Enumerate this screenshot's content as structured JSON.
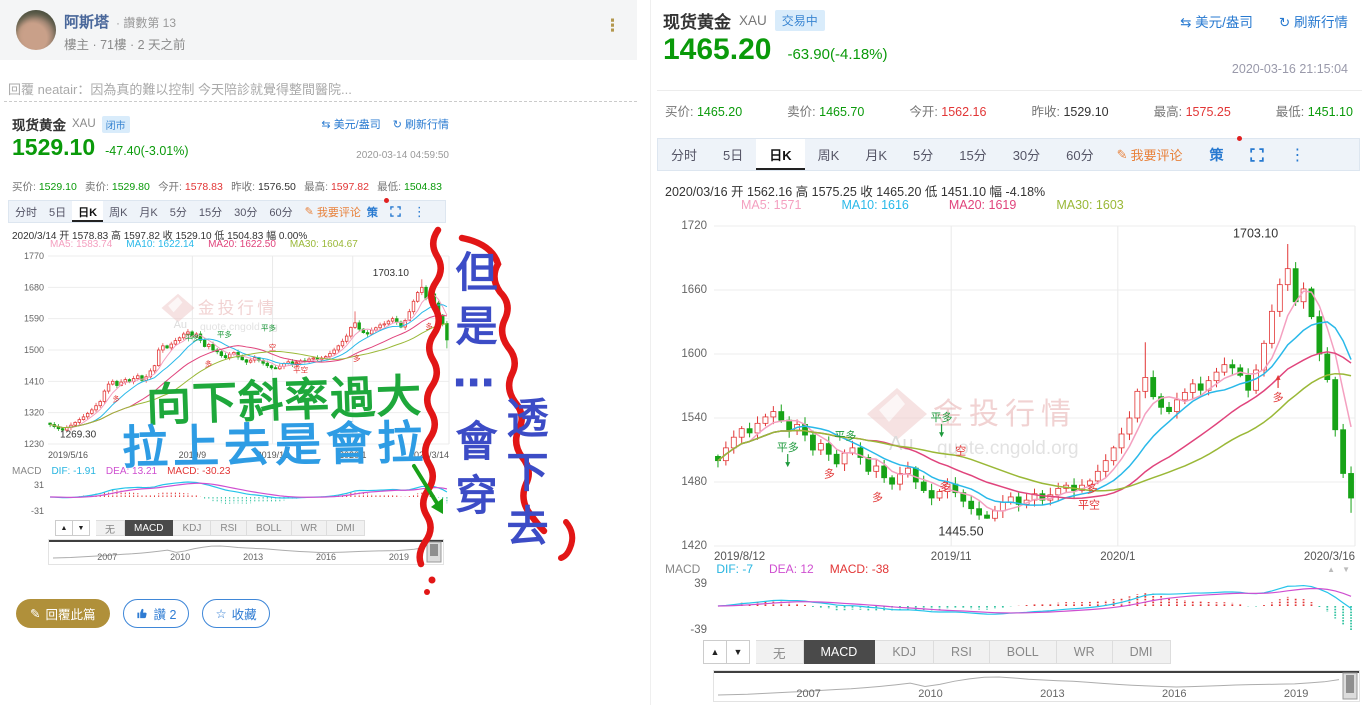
{
  "post": {
    "author": "阿斯塔",
    "author_badge": "· 讚數第 13",
    "meta": "樓主 · 71樓 · 2 天之前",
    "reply_quote": "回覆 neatair：因為真的難以控制 今天陪診就覺得整間醫院...",
    "actions": {
      "reply": "回覆此篇",
      "like": "讚 2",
      "favorite": "收藏"
    }
  },
  "hand_notes": {
    "green_text": "向下斜率過大",
    "blue_text": "拉上去是會拉",
    "vertical_text_1": "但是⋯會穿",
    "vertical_text_2": "透下去"
  },
  "left_chart": {
    "title": "现货黄金",
    "symbol": "XAU",
    "status_badge": "闭市",
    "price": "1529.10",
    "change": "-47.40(-3.01%)",
    "timestamp": "2020-03-14 04:59:50",
    "unit_link": "美元/盎司",
    "refresh_link": "刷新行情",
    "stats": [
      {
        "label": "买价:",
        "value": "1529.10"
      },
      {
        "label": "卖价:",
        "value": "1529.80"
      },
      {
        "label": "今开:",
        "value": "1578.83"
      },
      {
        "label": "昨收:",
        "value": "1576.50"
      },
      {
        "label": "最高:",
        "value": "1597.82"
      },
      {
        "label": "最低:",
        "value": "1504.83"
      }
    ],
    "tabs": [
      "分时",
      "5日",
      "日K",
      "周K",
      "月K",
      "5分",
      "15分",
      "30分",
      "60分"
    ],
    "comment_btn": "我要评论",
    "strategy_btn": "策",
    "ohlc_line": "2020/3/14 开 1578.83 高 1597.82 收 1529.10 低 1504.83 幅 0.00%",
    "ma_labels": [
      "MA5: 1583.74",
      "MA10: 1622.14",
      "MA20: 1622.50",
      "MA30: 1604.67"
    ],
    "macd_row": [
      "MACD",
      "DIF: -1.91",
      "DEA: 13.21",
      "MACD: -30.23"
    ],
    "indicator_tabs": [
      "无",
      "MACD",
      "KDJ",
      "RSI",
      "BOLL",
      "WR",
      "DMI"
    ]
  },
  "right_chart": {
    "title": "现货黄金",
    "symbol": "XAU",
    "status_badge": "交易中",
    "price": "1465.20",
    "change": "-63.90(-4.18%)",
    "timestamp": "2020-03-16 21:15:04",
    "unit_link": "美元/盎司",
    "refresh_link": "刷新行情",
    "stats": [
      {
        "label": "买价:",
        "value": "1465.20"
      },
      {
        "label": "卖价:",
        "value": "1465.70"
      },
      {
        "label": "今开:",
        "value": "1562.16"
      },
      {
        "label": "昨收:",
        "value": "1529.10"
      },
      {
        "label": "最高:",
        "value": "1575.25"
      },
      {
        "label": "最低:",
        "value": "1451.10"
      }
    ],
    "tabs": [
      "分时",
      "5日",
      "日K",
      "周K",
      "月K",
      "5分",
      "15分",
      "30分",
      "60分"
    ],
    "comment_btn": "我要评论",
    "strategy_btn": "策",
    "ohlc_line": "2020/03/16 开 1562.16 高 1575.25 收 1465.20 低 1451.10 幅 -4.18%",
    "ma_labels": [
      "MA5: 1571",
      "MA10: 1616",
      "MA20: 1619",
      "MA30: 1603"
    ],
    "macd_row": [
      "MACD",
      "DIF: -7",
      "DEA: 12",
      "MACD: -38"
    ],
    "indicator_tabs": [
      "无",
      "MACD",
      "KDJ",
      "RSI",
      "BOLL",
      "WR",
      "DMI"
    ]
  },
  "chart_data": [
    {
      "type": "candlestick",
      "title": "现货黄金 XAU 日K 2019/5/16 - 2020/3/14",
      "closes": [
        1286,
        1280,
        1274,
        1270,
        1277,
        1284,
        1292,
        1300,
        1308,
        1318,
        1328,
        1340,
        1352,
        1382,
        1402,
        1410,
        1398,
        1408,
        1415,
        1409,
        1418,
        1426,
        1413,
        1423,
        1440,
        1455,
        1500,
        1512,
        1506,
        1517,
        1527,
        1535,
        1546,
        1552,
        1538,
        1546,
        1528,
        1510,
        1516,
        1500,
        1495,
        1484,
        1478,
        1488,
        1493,
        1480,
        1472,
        1465,
        1471,
        1478,
        1470,
        1462,
        1455,
        1449,
        1446,
        1453,
        1461,
        1466,
        1459,
        1463,
        1469,
        1468,
        1474,
        1477,
        1472,
        1477,
        1481,
        1490,
        1500,
        1512,
        1525,
        1540,
        1565,
        1578,
        1560,
        1550,
        1546,
        1557,
        1564,
        1572,
        1575,
        1583,
        1590,
        1580,
        1566,
        1585,
        1610,
        1640,
        1665,
        1680,
        1649,
        1661,
        1635,
        1600,
        1576,
        1529
      ],
      "hi": {
        "73": 1611,
        "89": 1703.1
      },
      "lo": {
        "3": 1269.3,
        "54": 1445.5,
        "95": 1504.83
      },
      "yticks": [
        1770,
        1680,
        1590,
        1500,
        1410,
        1320,
        1230
      ],
      "ylim": [
        1230,
        1770
      ],
      "xgrid": [
        0.36,
        0.56,
        0.76,
        1
      ],
      "xlabels": [
        {
          "t": "2019/5/16",
          "f": 0
        },
        {
          "t": "2019/9",
          "f": 0.36
        },
        {
          "t": "2019/11",
          "f": 0.56
        },
        {
          "t": "2020/1",
          "f": 0.76
        },
        {
          "t": "2020/3/14",
          "f": 1
        }
      ],
      "ma_windows": [
        5,
        10,
        20,
        30
      ],
      "ma_colors": [
        "#f4a0c0",
        "#2ab9e9",
        "#e0447c",
        "#9ab837"
      ],
      "price_labels": [
        {
          "t": "1703.10",
          "f": 0.855,
          "p": 1713,
          "a": "middle"
        },
        {
          "t": "1269.30",
          "f": 0.03,
          "p": 1249,
          "a": "start"
        }
      ],
      "trade_marks": [
        {
          "t": "多",
          "f": 0.17,
          "p": 1352,
          "c": "r"
        },
        {
          "t": "平多",
          "f": 0.36,
          "p": 1528,
          "c": "g"
        },
        {
          "t": "多",
          "f": 0.4,
          "p": 1452,
          "c": "r"
        },
        {
          "t": "平多",
          "f": 0.44,
          "p": 1538,
          "c": "g"
        },
        {
          "t": "平多",
          "f": 0.55,
          "p": 1556,
          "c": "g"
        },
        {
          "t": "空",
          "f": 0.56,
          "p": 1500,
          "c": "r"
        },
        {
          "t": "多",
          "f": 0.62,
          "p": 1452,
          "c": "r"
        },
        {
          "t": "平空",
          "f": 0.63,
          "p": 1436,
          "c": "r"
        },
        {
          "t": "多",
          "f": 0.77,
          "p": 1468,
          "c": "r"
        },
        {
          "t": "多",
          "f": 0.95,
          "p": 1560,
          "c": "r"
        }
      ],
      "macd_yticks": [
        "31",
        "-31"
      ],
      "watermark": {
        "brand": "金投行情",
        "au": "Au",
        "domain": "quote.cngold.org"
      },
      "timeline": {
        "values": [
          440,
          470,
          500,
          560,
          620,
          680,
          730,
          820,
          890,
          950,
          1040,
          1140,
          1260,
          1400,
          1130,
          1300,
          1560,
          1750,
          1880,
          1900,
          1820,
          1720,
          1660,
          1600,
          1560,
          1470,
          1380,
          1300,
          1230,
          1180,
          1130,
          1090,
          1120,
          1160,
          1200,
          1250,
          1280,
          1300,
          1320,
          1340,
          1420,
          1510,
          1690
        ],
        "years": [
          "2007",
          "2010",
          "2013",
          "2016",
          "2019"
        ],
        "year_fracs": [
          0.145,
          0.34,
          0.535,
          0.73,
          0.925
        ]
      }
    },
    {
      "type": "candlestick",
      "title": "现货黄金 XAU 日K 2019/8/12 - 2020/3/16",
      "closes": [
        1500,
        1512,
        1522,
        1530,
        1526,
        1535,
        1541,
        1546,
        1538,
        1528,
        1534,
        1524,
        1510,
        1516,
        1506,
        1497,
        1507,
        1512,
        1503,
        1490,
        1495,
        1484,
        1478,
        1488,
        1493,
        1480,
        1472,
        1465,
        1471,
        1478,
        1470,
        1462,
        1455,
        1449,
        1446,
        1453,
        1461,
        1466,
        1459,
        1463,
        1469,
        1463,
        1468,
        1474,
        1477,
        1472,
        1477,
        1481,
        1490,
        1500,
        1512,
        1525,
        1540,
        1565,
        1578,
        1560,
        1550,
        1546,
        1557,
        1564,
        1572,
        1566,
        1575,
        1583,
        1590,
        1587,
        1580,
        1566,
        1585,
        1610,
        1640,
        1665,
        1680,
        1649,
        1661,
        1635,
        1600,
        1576,
        1529,
        1488,
        1465
      ],
      "hi": {
        "54": 1611,
        "72": 1703.1
      },
      "lo": {
        "34": 1445.5,
        "80": 1451.1
      },
      "yticks": [
        1720,
        1660,
        1600,
        1540,
        1480,
        1420
      ],
      "ylim": [
        1420,
        1720
      ],
      "xgrid": [
        0.37,
        0.63,
        1
      ],
      "xlabels": [
        {
          "t": "2019/8/12",
          "f": 0
        },
        {
          "t": "2019/11",
          "f": 0.37
        },
        {
          "t": "2020/1",
          "f": 0.63
        },
        {
          "t": "2020/3/16",
          "f": 1
        }
      ],
      "ma_windows": [
        5,
        10,
        20,
        30
      ],
      "ma_colors": [
        "#f4a0c0",
        "#2ab9e9",
        "#e0447c",
        "#9ab837"
      ],
      "price_labels": [
        {
          "t": "1703.10",
          "f": 0.845,
          "p": 1709,
          "a": "middle"
        },
        {
          "t": "1445.50",
          "f": 0.35,
          "p": 1430,
          "a": "start"
        }
      ],
      "trade_marks": [
        {
          "t": "平多",
          "f": 0.115,
          "p": 1509,
          "c": "g",
          "ar": "d"
        },
        {
          "t": "多",
          "f": 0.18,
          "p": 1484,
          "c": "r"
        },
        {
          "t": "平多",
          "f": 0.205,
          "p": 1520,
          "c": "g"
        },
        {
          "t": "多",
          "f": 0.255,
          "p": 1462,
          "c": "r"
        },
        {
          "t": "平多",
          "f": 0.355,
          "p": 1537,
          "c": "g",
          "ar": "d"
        },
        {
          "t": "空",
          "f": 0.385,
          "p": 1506,
          "c": "r"
        },
        {
          "t": "多",
          "f": 0.36,
          "p": 1472,
          "c": "r"
        },
        {
          "t": "平空",
          "f": 0.585,
          "p": 1455,
          "c": "r"
        },
        {
          "t": "多",
          "f": 0.59,
          "p": 1470,
          "c": "r"
        },
        {
          "t": "多",
          "f": 0.88,
          "p": 1556,
          "c": "r",
          "ar": "u"
        }
      ],
      "macd_yticks": [
        "39",
        "-39"
      ],
      "watermark": {
        "brand": "金投行情",
        "au": "Au",
        "domain": "quote.cngold.org"
      },
      "timeline": {
        "values": [
          440,
          470,
          500,
          560,
          620,
          680,
          730,
          820,
          890,
          950,
          1040,
          1140,
          1260,
          1400,
          1130,
          1300,
          1560,
          1750,
          1880,
          1900,
          1820,
          1720,
          1660,
          1600,
          1560,
          1470,
          1380,
          1300,
          1230,
          1180,
          1130,
          1090,
          1120,
          1160,
          1200,
          1250,
          1280,
          1300,
          1320,
          1340,
          1420,
          1510,
          1690
        ],
        "years": [
          "2007",
          "2010",
          "2013",
          "2016",
          "2019"
        ],
        "year_fracs": [
          0.145,
          0.34,
          0.535,
          0.73,
          0.925
        ]
      }
    }
  ]
}
